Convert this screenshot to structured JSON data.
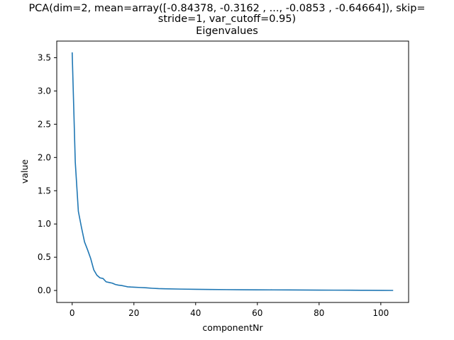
{
  "chart_data": {
    "type": "line",
    "title_lines": [
      "PCA(dim=2, mean=array([-0.84378, -0.3162 , ..., -0.0853 , -0.64664]), skip=",
      "stride=1, var_cutoff=0.95)",
      "Eigenvalues"
    ],
    "xlabel": "componentNr",
    "ylabel": "value",
    "xlim": [
      -5,
      109
    ],
    "ylim": [
      -0.18,
      3.75
    ],
    "xticks": [
      0,
      20,
      40,
      60,
      80,
      100
    ],
    "xtick_labels": [
      "0",
      "20",
      "40",
      "60",
      "80",
      "100"
    ],
    "yticks": [
      0.0,
      0.5,
      1.0,
      1.5,
      2.0,
      2.5,
      3.0,
      3.5
    ],
    "ytick_labels": [
      "0.0",
      "0.5",
      "1.0",
      "1.5",
      "2.0",
      "2.5",
      "3.0",
      "3.5"
    ],
    "grid": false,
    "series": [
      {
        "color": "#1f77b4",
        "x": [
          0,
          1,
          2,
          3,
          4,
          5,
          6,
          7,
          8,
          9,
          10,
          11,
          12,
          13,
          14,
          15,
          16,
          17,
          18,
          19,
          20,
          22,
          24,
          26,
          28,
          30,
          35,
          40,
          45,
          50,
          55,
          60,
          65,
          70,
          75,
          80,
          85,
          90,
          95,
          100,
          104
        ],
        "y": [
          3.58,
          1.93,
          1.19,
          0.95,
          0.73,
          0.61,
          0.48,
          0.31,
          0.23,
          0.19,
          0.18,
          0.13,
          0.12,
          0.11,
          0.09,
          0.08,
          0.075,
          0.065,
          0.055,
          0.052,
          0.05,
          0.045,
          0.04,
          0.033,
          0.028,
          0.026,
          0.021,
          0.018,
          0.015,
          0.013,
          0.011,
          0.01,
          0.009,
          0.008,
          0.007,
          0.006,
          0.005,
          0.004,
          0.003,
          0.002,
          0.001
        ]
      }
    ]
  }
}
